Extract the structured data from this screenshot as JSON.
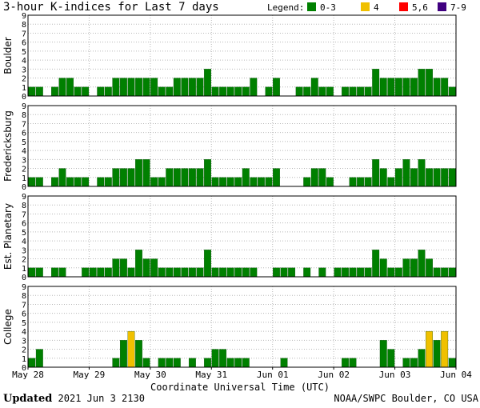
{
  "header": {
    "title": "3-hour K-indices for Last 7 days"
  },
  "legend": {
    "label": "Legend:",
    "items": [
      {
        "label": "0-3",
        "color": "#008000"
      },
      {
        "label": "4",
        "color": "#f0c000"
      },
      {
        "label": "5,6",
        "color": "#ff0000"
      },
      {
        "label": "7-9",
        "color": "#400080"
      }
    ]
  },
  "footer": {
    "updated_label": "Updated",
    "updated_value": "2021 Jun  3 2130",
    "source": "NOAA/SWPC Boulder, CO USA"
  },
  "chart_data": [
    {
      "type": "bar",
      "title": "Boulder",
      "ylabel": "Boulder",
      "ylim": [
        0,
        9
      ],
      "yticks": [
        "0",
        "1",
        "2",
        "3",
        "4",
        "5",
        "6",
        "7",
        "8",
        "9"
      ],
      "values": [
        1,
        1,
        0,
        1,
        2,
        2,
        1,
        1,
        0,
        1,
        1,
        2,
        2,
        2,
        2,
        2,
        2,
        1,
        1,
        2,
        2,
        2,
        2,
        3,
        1,
        1,
        1,
        1,
        1,
        2,
        0,
        1,
        2,
        0,
        0,
        1,
        1,
        2,
        1,
        1,
        0,
        1,
        1,
        1,
        1,
        3,
        2,
        2,
        2,
        2,
        2,
        3,
        3,
        2,
        2,
        1,
        0
      ]
    },
    {
      "type": "bar",
      "title": "Fredericksburg",
      "ylabel": "Fredericksburg",
      "ylim": [
        0,
        9
      ],
      "yticks": [
        "0",
        "1",
        "2",
        "3",
        "4",
        "5",
        "6",
        "7",
        "8",
        "9"
      ],
      "values": [
        1,
        1,
        0,
        1,
        2,
        1,
        1,
        1,
        0,
        1,
        1,
        2,
        2,
        2,
        3,
        3,
        1,
        1,
        2,
        2,
        2,
        2,
        2,
        3,
        1,
        1,
        1,
        1,
        2,
        1,
        1,
        1,
        2,
        0,
        0,
        0,
        1,
        2,
        2,
        1,
        0,
        0,
        1,
        1,
        1,
        3,
        2,
        1,
        2,
        3,
        2,
        3,
        2,
        2,
        2,
        2,
        1,
        0
      ]
    },
    {
      "type": "bar",
      "title": "Est. Planetary",
      "ylabel": "Est. Planetary",
      "ylim": [
        0,
        9
      ],
      "yticks": [
        "0",
        "1",
        "2",
        "3",
        "4",
        "5",
        "6",
        "7",
        "8",
        "9"
      ],
      "values": [
        1,
        1,
        0,
        1,
        1,
        0,
        0,
        1,
        1,
        1,
        1,
        2,
        2,
        1,
        3,
        2,
        2,
        1,
        1,
        1,
        1,
        1,
        1,
        3,
        1,
        1,
        1,
        1,
        1,
        1,
        0,
        0,
        1,
        1,
        1,
        0,
        1,
        0,
        1,
        0,
        1,
        1,
        1,
        1,
        1,
        3,
        2,
        1,
        1,
        2,
        2,
        3,
        2,
        1,
        1,
        1
      ]
    },
    {
      "type": "bar",
      "title": "College",
      "ylabel": "College",
      "ylim": [
        0,
        9
      ],
      "yticks": [
        "0",
        "1",
        "2",
        "3",
        "4",
        "5",
        "6",
        "7",
        "8",
        "9"
      ],
      "values": [
        1,
        2,
        0,
        0,
        0,
        0,
        0,
        0,
        0,
        0,
        0,
        1,
        3,
        4,
        3,
        1,
        0,
        1,
        1,
        1,
        0,
        1,
        0,
        1,
        2,
        2,
        1,
        1,
        1,
        0,
        0,
        0,
        0,
        1,
        0,
        0,
        0,
        0,
        0,
        0,
        0,
        1,
        1,
        0,
        0,
        0,
        3,
        2,
        0,
        1,
        1,
        2,
        4,
        3,
        4,
        1,
        1,
        0
      ]
    }
  ],
  "x_axis": {
    "label": "Coordinate Universal Time (UTC)",
    "ticks": [
      "May 28",
      "May 29",
      "May 30",
      "May 31",
      "Jun 01",
      "Jun 02",
      "Jun 03",
      "Jun 04"
    ]
  }
}
